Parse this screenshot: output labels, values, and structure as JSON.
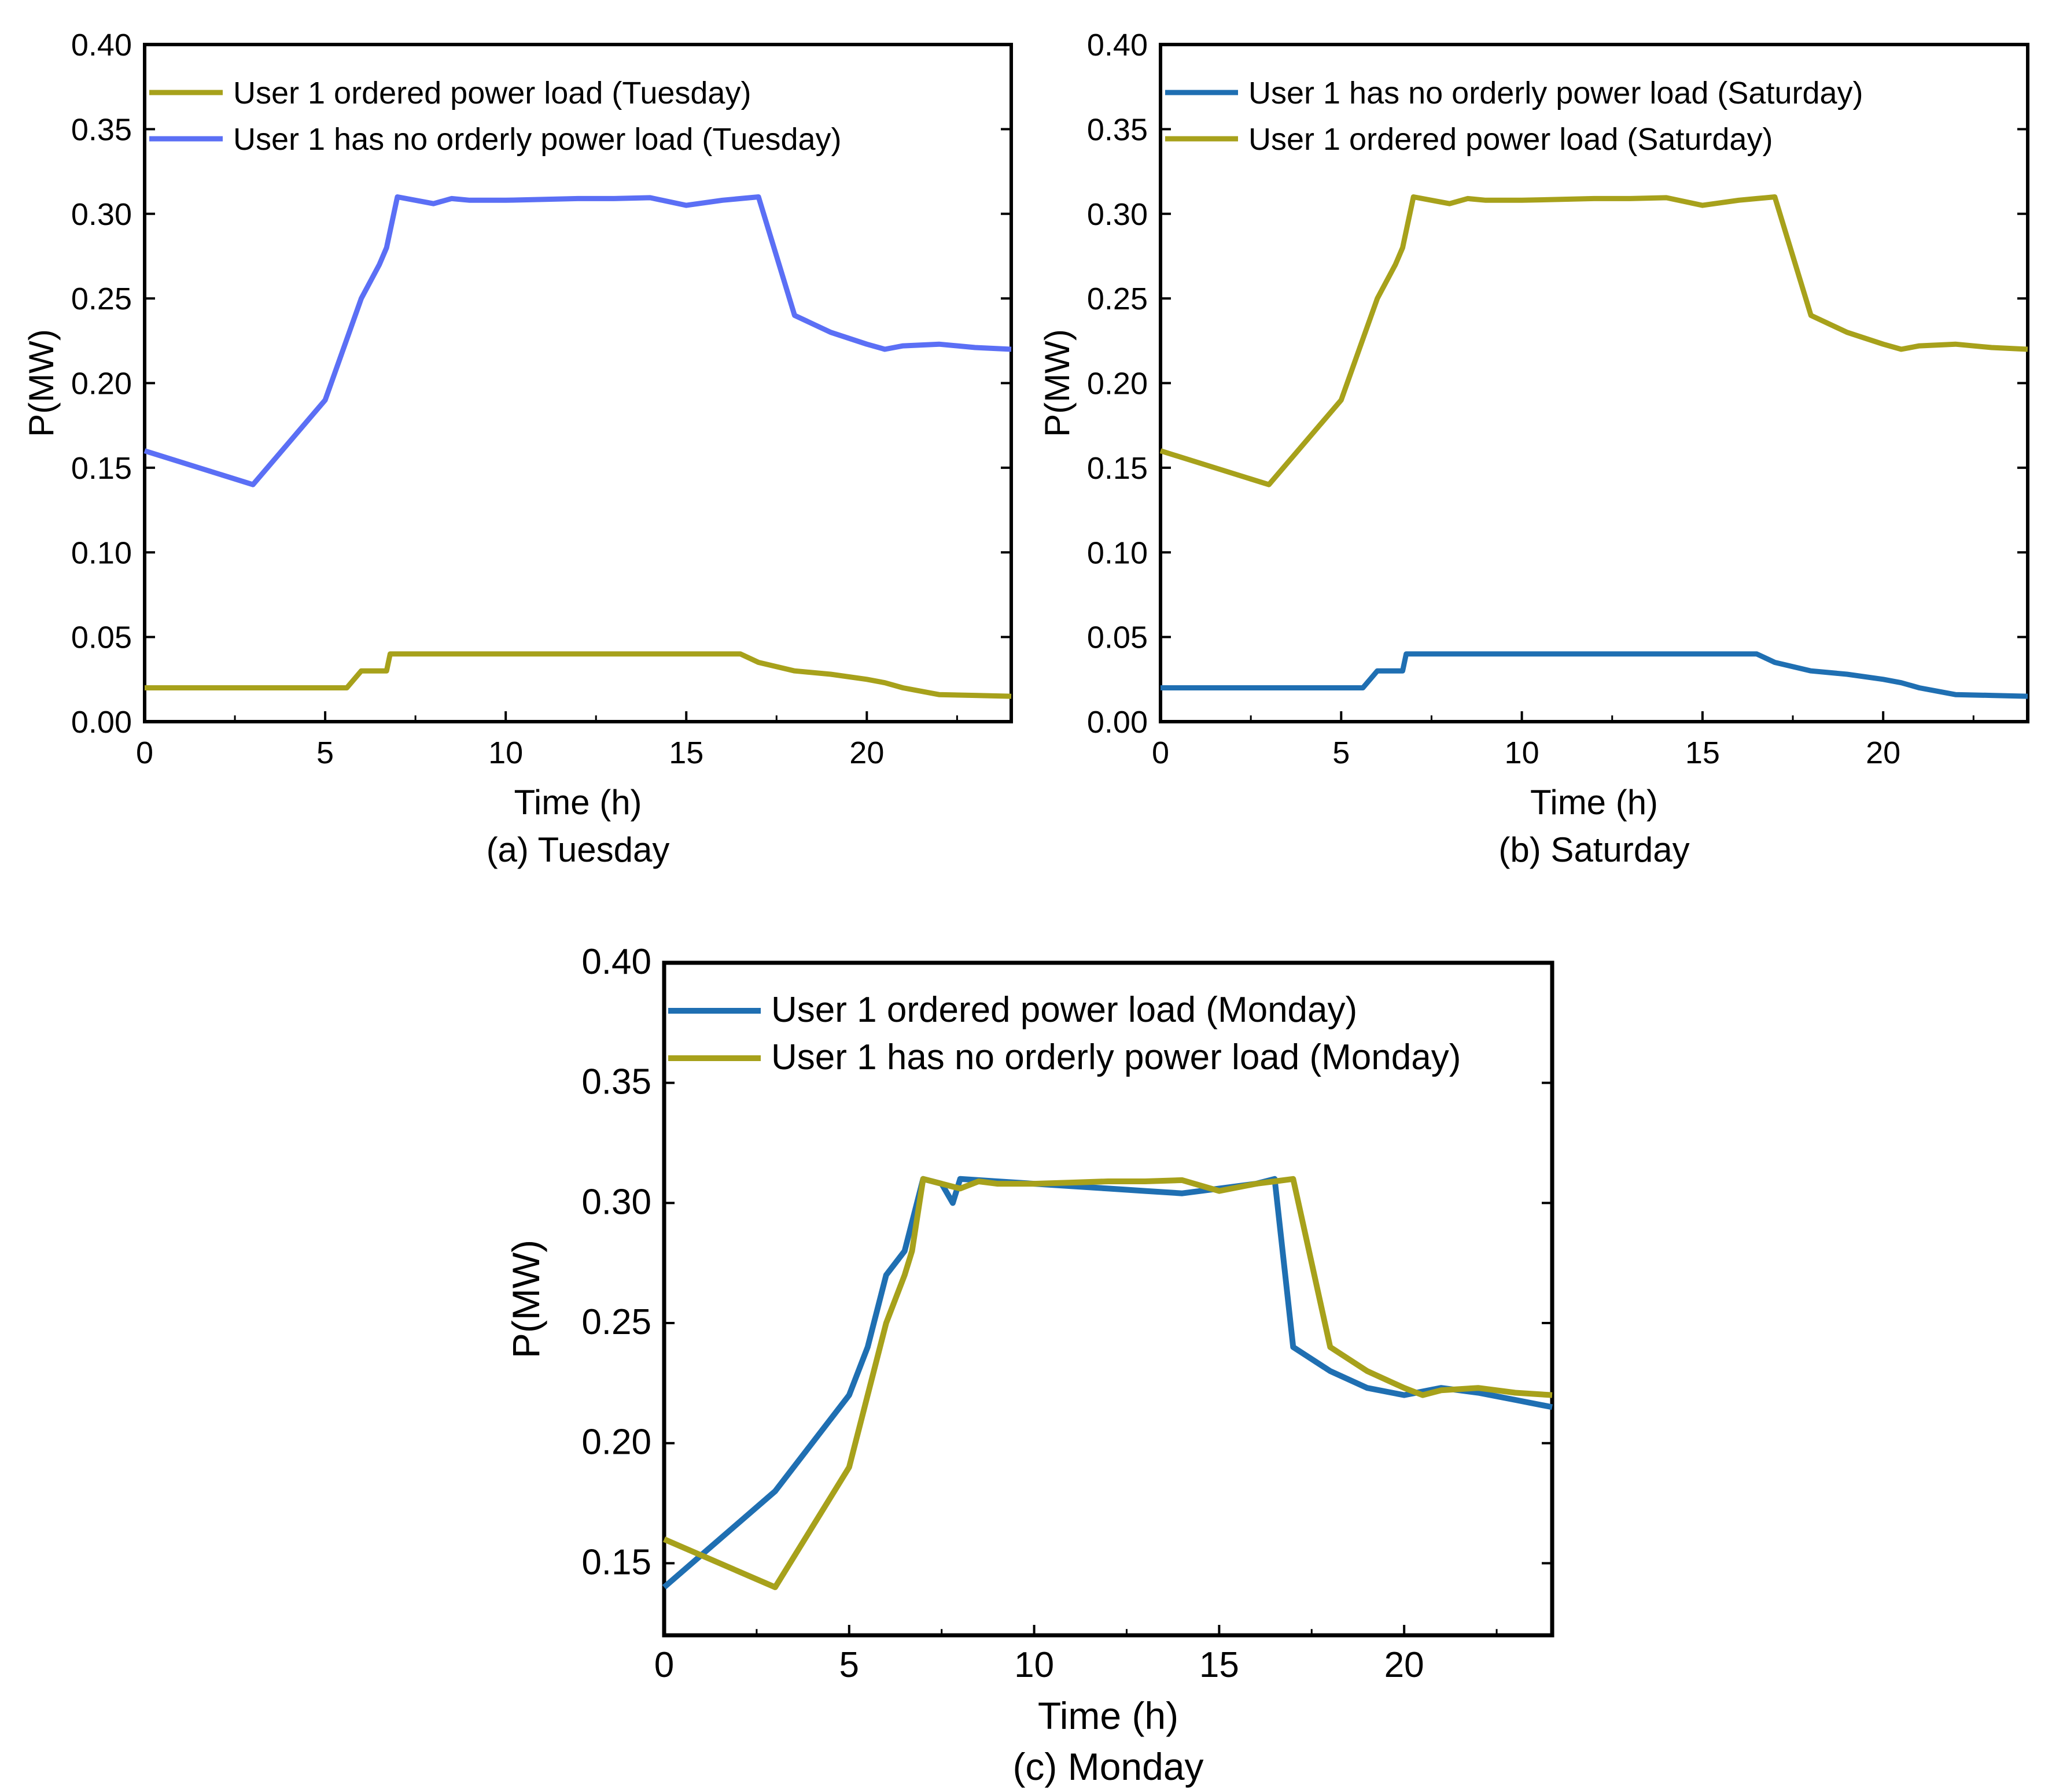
{
  "chart_data": [
    {
      "id": "a",
      "type": "line",
      "caption": "(a)  Tuesday",
      "xlabel": "Time (h)",
      "ylabel": "P(MW)",
      "xlim": [
        0,
        24
      ],
      "ylim": [
        0,
        0.4
      ],
      "xticks": [
        0,
        5,
        10,
        15,
        20
      ],
      "xtick_labels": [
        "0",
        "5",
        "10",
        "15",
        "20"
      ],
      "yticks": [
        0,
        0.05,
        0.1,
        0.15,
        0.2,
        0.25,
        0.3,
        0.35,
        0.4
      ],
      "ytick_labels": [
        "0.00",
        "0.05",
        "0.10",
        "0.15",
        "0.20",
        "0.25",
        "0.30",
        "0.35",
        "0.40"
      ],
      "grid": false,
      "legend_position": "top-left",
      "series": [
        {
          "name": "User 1 ordered power load (Tuesday)",
          "color": "#a7a11b",
          "x": [
            0,
            1,
            2,
            3,
            4,
            5,
            5.6,
            6,
            6.7,
            6.8,
            7,
            8,
            9,
            10,
            11,
            12,
            13,
            14,
            15,
            16,
            16.5,
            17,
            18,
            19,
            20,
            20.5,
            21,
            22,
            23,
            24
          ],
          "y": [
            0.02,
            0.02,
            0.02,
            0.02,
            0.02,
            0.02,
            0.02,
            0.03,
            0.03,
            0.04,
            0.04,
            0.04,
            0.04,
            0.04,
            0.04,
            0.04,
            0.04,
            0.04,
            0.04,
            0.04,
            0.04,
            0.035,
            0.03,
            0.028,
            0.025,
            0.023,
            0.02,
            0.016,
            0.0155,
            0.015
          ]
        },
        {
          "name": "User 1 has no orderly power load (Tuesday)",
          "color": "#5b6ff5",
          "x": [
            0,
            3,
            5,
            5.5,
            6,
            6.5,
            6.7,
            7,
            8,
            8.5,
            9,
            10,
            11,
            12,
            13,
            14,
            15,
            16,
            16.5,
            17,
            18,
            19,
            20,
            20.5,
            21,
            22,
            23,
            24
          ],
          "y": [
            0.16,
            0.14,
            0.19,
            0.22,
            0.25,
            0.27,
            0.28,
            0.31,
            0.306,
            0.309,
            0.308,
            0.308,
            0.3085,
            0.309,
            0.309,
            0.3095,
            0.305,
            0.308,
            0.309,
            0.31,
            0.24,
            0.23,
            0.223,
            0.22,
            0.222,
            0.223,
            0.221,
            0.22
          ]
        }
      ]
    },
    {
      "id": "b",
      "type": "line",
      "caption": "(b)  Saturday",
      "xlabel": "Time (h)",
      "ylabel": "P(MW)",
      "xlim": [
        0,
        24
      ],
      "ylim": [
        0,
        0.4
      ],
      "xticks": [
        0,
        5,
        10,
        15,
        20
      ],
      "xtick_labels": [
        "0",
        "5",
        "10",
        "15",
        "20"
      ],
      "yticks": [
        0,
        0.05,
        0.1,
        0.15,
        0.2,
        0.25,
        0.3,
        0.35,
        0.4
      ],
      "ytick_labels": [
        "0.00",
        "0.05",
        "0.10",
        "0.15",
        "0.20",
        "0.25",
        "0.30",
        "0.35",
        "0.40"
      ],
      "grid": false,
      "legend_position": "top-left",
      "series": [
        {
          "name": "User 1 has no orderly power load (Saturday)",
          "color": "#1f6fb2",
          "x": [
            0,
            1,
            2,
            3,
            4,
            5,
            5.6,
            6,
            6.7,
            6.8,
            7,
            8,
            9,
            10,
            11,
            12,
            13,
            14,
            15,
            16,
            16.5,
            17,
            18,
            19,
            20,
            20.5,
            21,
            22,
            23,
            24
          ],
          "y": [
            0.02,
            0.02,
            0.02,
            0.02,
            0.02,
            0.02,
            0.02,
            0.03,
            0.03,
            0.04,
            0.04,
            0.04,
            0.04,
            0.04,
            0.04,
            0.04,
            0.04,
            0.04,
            0.04,
            0.04,
            0.04,
            0.035,
            0.03,
            0.028,
            0.025,
            0.023,
            0.02,
            0.016,
            0.0155,
            0.015
          ]
        },
        {
          "name": "User 1 ordered power load (Saturday)",
          "color": "#a7a11b",
          "x": [
            0,
            3,
            5,
            5.5,
            6,
            6.5,
            6.7,
            7,
            8,
            8.5,
            9,
            10,
            11,
            12,
            13,
            14,
            15,
            16,
            16.5,
            17,
            18,
            19,
            20,
            20.5,
            21,
            22,
            23,
            24
          ],
          "y": [
            0.16,
            0.14,
            0.19,
            0.22,
            0.25,
            0.27,
            0.28,
            0.31,
            0.306,
            0.309,
            0.308,
            0.308,
            0.3085,
            0.309,
            0.309,
            0.3095,
            0.305,
            0.308,
            0.309,
            0.31,
            0.24,
            0.23,
            0.223,
            0.22,
            0.222,
            0.223,
            0.221,
            0.22
          ]
        }
      ]
    },
    {
      "id": "c",
      "type": "line",
      "caption": "(c) Monday",
      "xlabel": "Time (h)",
      "ylabel": "P(MW)",
      "xlim": [
        0,
        24
      ],
      "ylim": [
        0.12,
        0.4
      ],
      "xticks": [
        0,
        5,
        10,
        15,
        20
      ],
      "xtick_labels": [
        "0",
        "5",
        "10",
        "15",
        "20"
      ],
      "yticks": [
        0.15,
        0.2,
        0.25,
        0.3,
        0.35,
        0.4
      ],
      "ytick_labels": [
        "0.15",
        "0.20",
        "0.25",
        "0.30",
        "0.35",
        "0.40"
      ],
      "grid": false,
      "legend_position": "top-left",
      "series": [
        {
          "name": "User 1 ordered power load (Monday)",
          "color": "#1f6fb2",
          "x": [
            0,
            3,
            5,
            5.5,
            6,
            6.5,
            7,
            7.5,
            7.8,
            8,
            9,
            10,
            11,
            12,
            13,
            14,
            15,
            16,
            16.5,
            17,
            18,
            19,
            20,
            21,
            22,
            23,
            24
          ],
          "y": [
            0.14,
            0.18,
            0.22,
            0.24,
            0.27,
            0.28,
            0.31,
            0.308,
            0.3,
            0.31,
            0.309,
            0.308,
            0.307,
            0.306,
            0.305,
            0.304,
            0.306,
            0.308,
            0.31,
            0.24,
            0.23,
            0.223,
            0.22,
            0.223,
            0.221,
            0.218,
            0.215
          ]
        },
        {
          "name": "User 1 has no orderly power load (Monday)",
          "color": "#a7a11b",
          "x": [
            0,
            3,
            5,
            5.5,
            6,
            6.5,
            6.7,
            7,
            8,
            8.5,
            9,
            10,
            11,
            12,
            13,
            14,
            15,
            16,
            16.5,
            17,
            18,
            19,
            20,
            20.5,
            21,
            22,
            23,
            24
          ],
          "y": [
            0.16,
            0.14,
            0.19,
            0.22,
            0.25,
            0.27,
            0.28,
            0.31,
            0.306,
            0.309,
            0.308,
            0.308,
            0.3085,
            0.309,
            0.309,
            0.3095,
            0.305,
            0.308,
            0.309,
            0.31,
            0.24,
            0.23,
            0.223,
            0.22,
            0.222,
            0.223,
            0.221,
            0.22
          ]
        }
      ]
    }
  ]
}
